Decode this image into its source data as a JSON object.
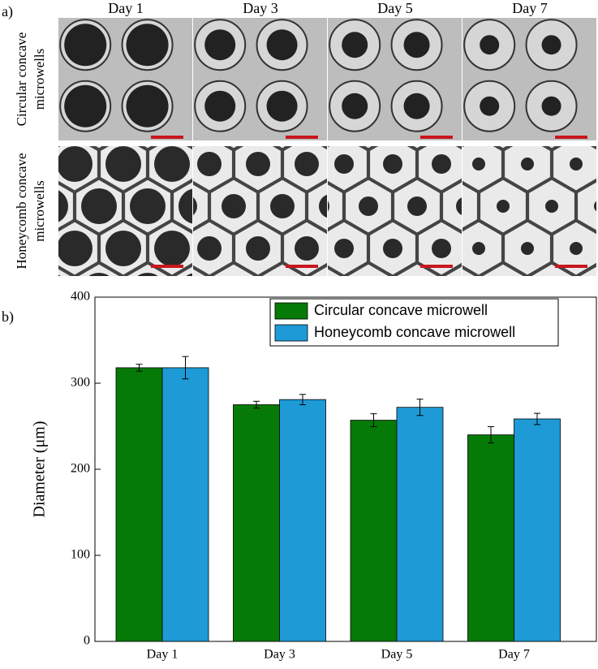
{
  "panel_a": {
    "label": "a)",
    "columns": [
      "Day 1",
      "Day 3",
      "Day 5",
      "Day 7"
    ],
    "rows": [
      [
        "Circular concave",
        "microwells"
      ],
      [
        "Honeycomb concave",
        "microwells"
      ]
    ]
  },
  "panel_b": {
    "label": "b)"
  },
  "chart_data": {
    "type": "bar",
    "y_label": "Diameter (μm)",
    "categories": [
      "Day 1",
      "Day 3",
      "Day 5",
      "Day 7"
    ],
    "series": [
      {
        "name": "Circular concave microwell",
        "color": "#067a06",
        "values": [
          318,
          275,
          257,
          240
        ],
        "errors": [
          4,
          4,
          7.5,
          9.5
        ]
      },
      {
        "name": "Honeycomb concave microwell",
        "color": "#1e9ad6",
        "values": [
          318,
          281,
          272,
          258.5
        ],
        "errors": [
          13,
          6,
          9.5,
          6.5
        ]
      }
    ],
    "ylim": [
      0,
      400
    ],
    "yticks": [
      0,
      100,
      200,
      300,
      400
    ],
    "legend": "top-right"
  }
}
